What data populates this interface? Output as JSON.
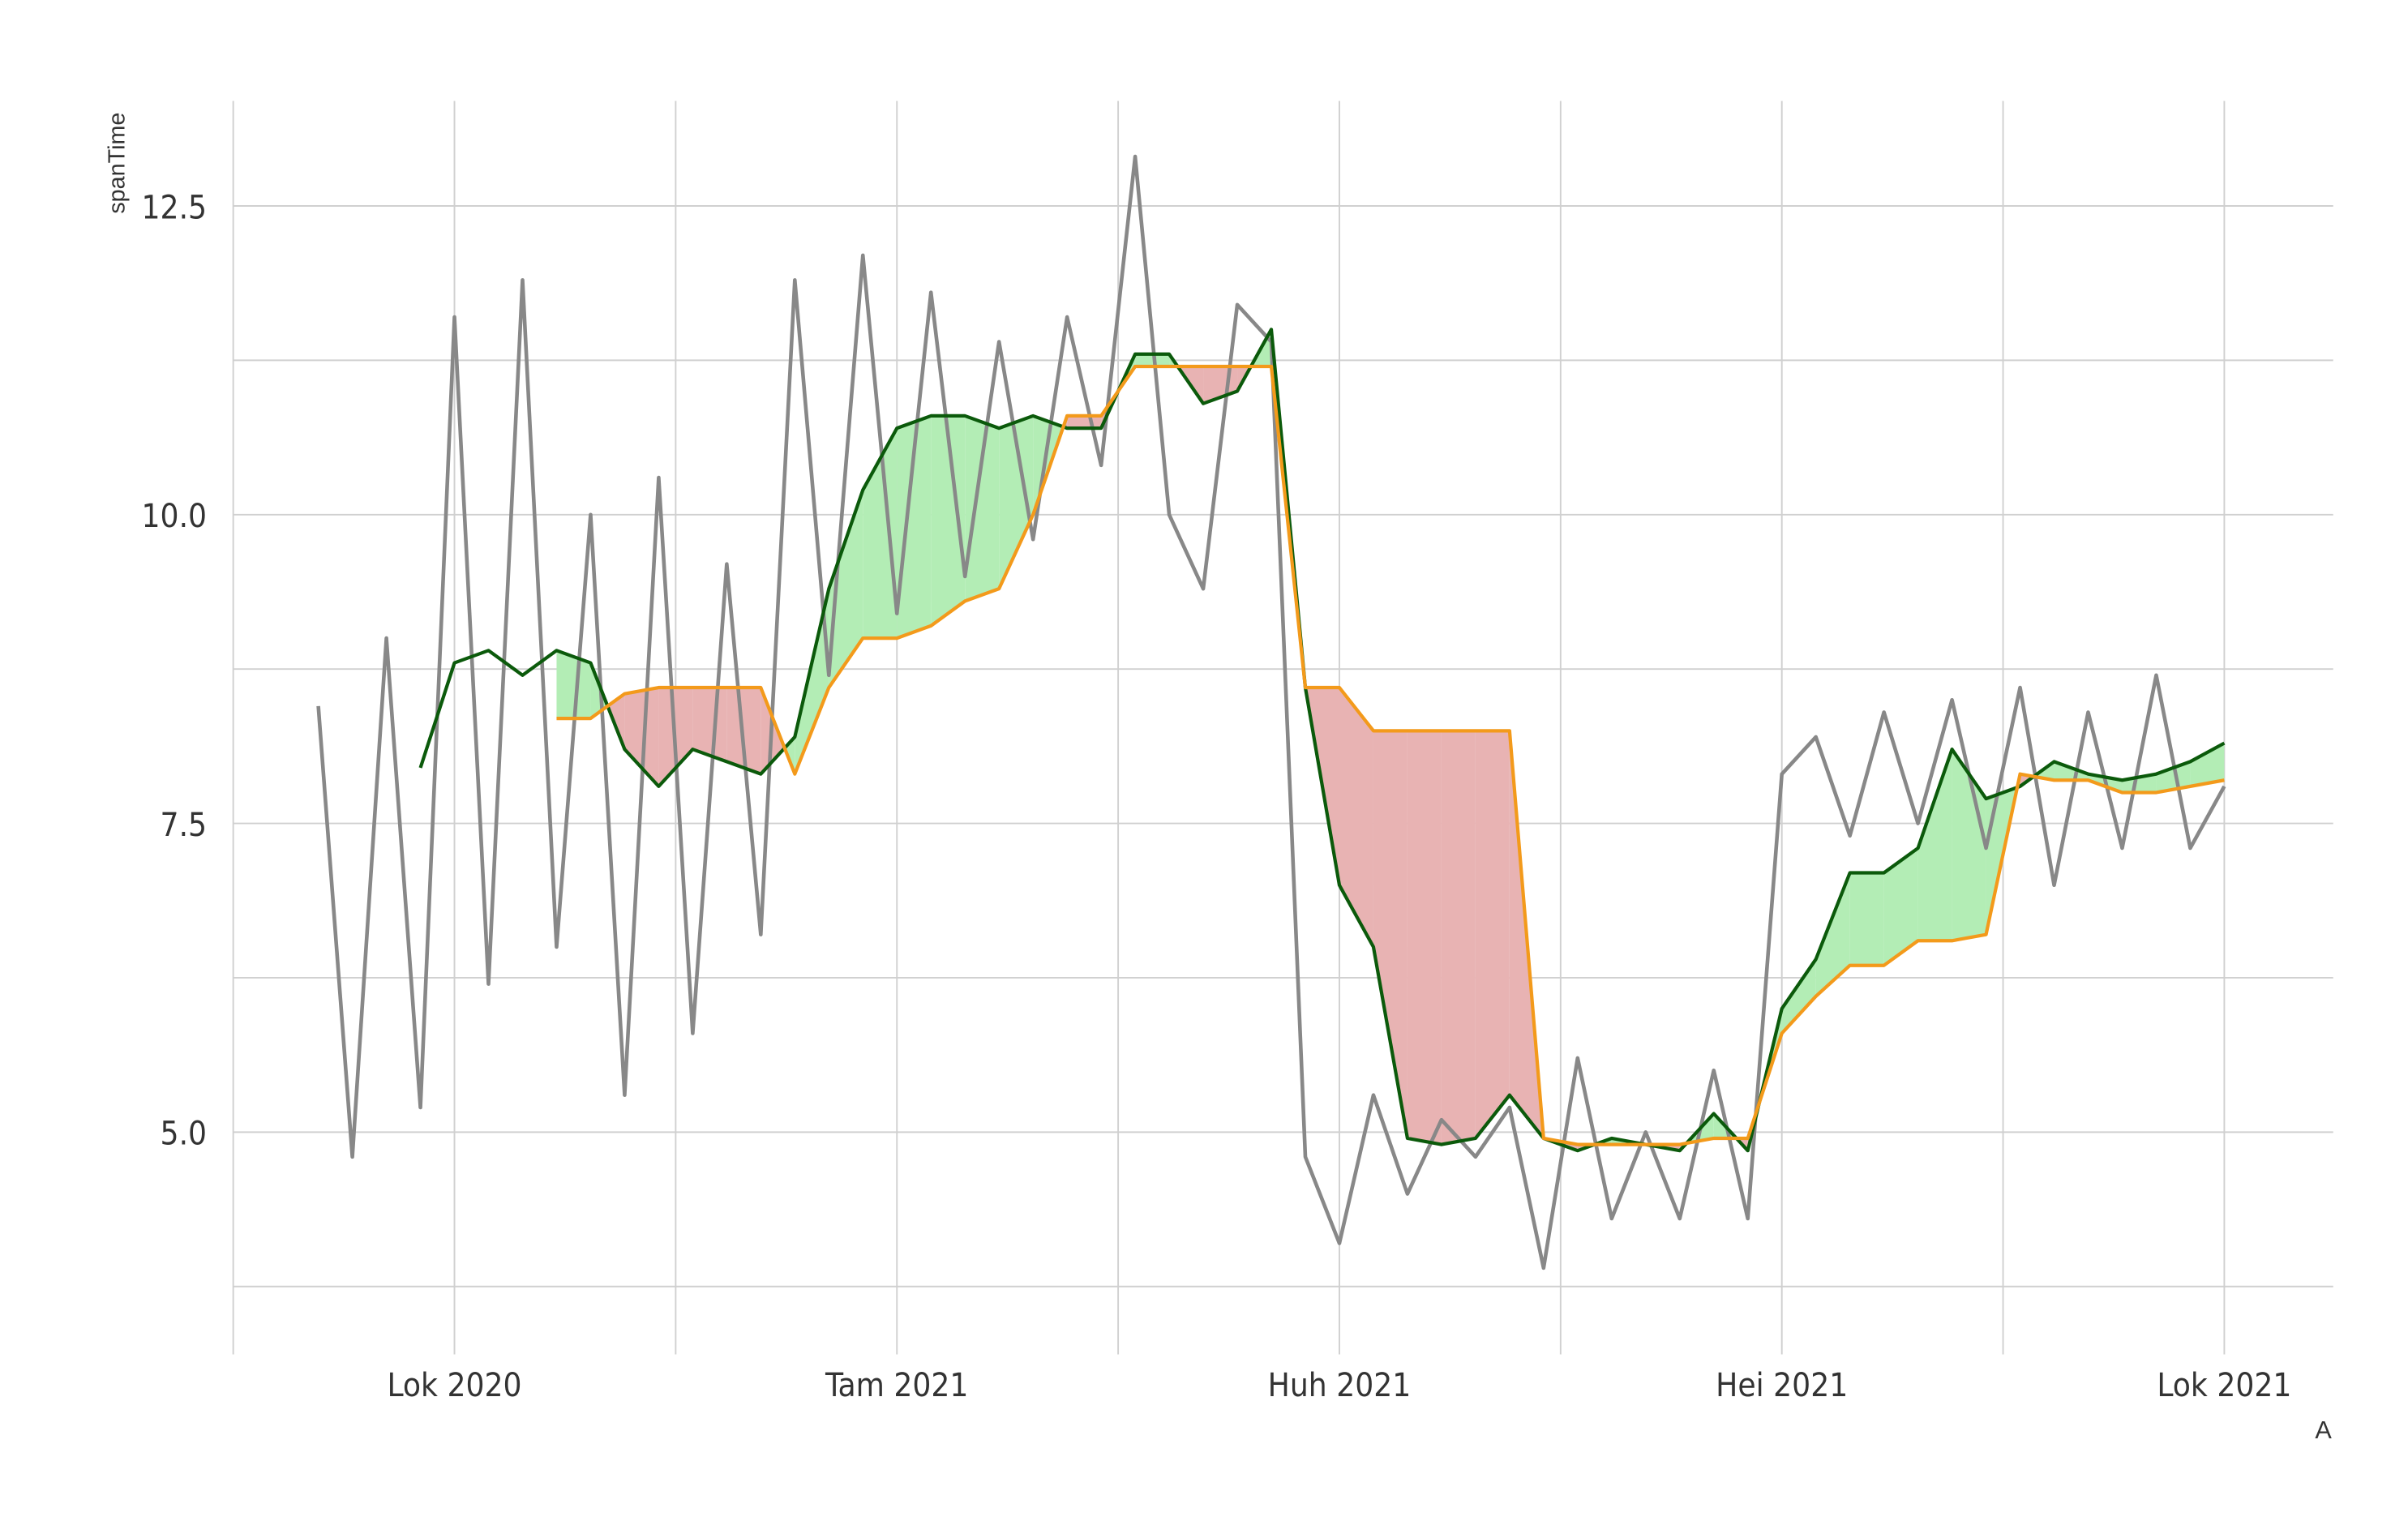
{
  "chart_data": {
    "type": "line",
    "y_label": "spanTime",
    "x_label": "A",
    "categories": [
      null,
      null,
      null,
      null,
      "Lok 2020",
      null,
      null,
      null,
      null,
      null,
      null,
      null,
      null,
      null,
      null,
      null,
      null,
      "Tam 2021",
      null,
      null,
      null,
      null,
      null,
      null,
      null,
      null,
      null,
      null,
      null,
      null,
      "Huh 2021",
      null,
      null,
      null,
      null,
      null,
      null,
      null,
      null,
      null,
      null,
      null,
      null,
      "Hei 2021",
      null,
      null,
      null,
      null,
      null,
      null,
      null,
      null,
      null,
      null,
      null,
      null,
      "Lok 2021"
    ],
    "series": [
      {
        "color": "#888888",
        "values": [
          8.45,
          4.8,
          9.0,
          5.2,
          11.6,
          6.2,
          11.9,
          6.5,
          10.0,
          5.3,
          10.3,
          5.8,
          9.6,
          6.6,
          11.9,
          8.7,
          12.1,
          9.2,
          11.8,
          9.5,
          11.4,
          9.8,
          11.6,
          10.4,
          12.9,
          10.0,
          9.4,
          11.7,
          11.4,
          4.8,
          4.1,
          5.3,
          4.5,
          5.1,
          4.8,
          5.2,
          3.9,
          5.6,
          4.3,
          5.0,
          4.3,
          5.5,
          4.3,
          7.9,
          8.2,
          7.4,
          8.4,
          7.5,
          8.5,
          7.3,
          8.6,
          7.0,
          8.4,
          7.3,
          8.7,
          7.3,
          7.8
        ]
      },
      {
        "color": "#0b5a0b",
        "values": [
          null,
          null,
          null,
          7.95,
          8.8,
          8.9,
          8.7,
          8.9,
          8.8,
          8.1,
          7.8,
          8.1,
          8.0,
          7.9,
          8.2,
          9.4,
          10.2,
          10.7,
          10.8,
          10.8,
          10.7,
          10.8,
          10.7,
          10.7,
          11.3,
          11.3,
          10.9,
          11.0,
          11.5,
          8.6,
          7.0,
          6.5,
          4.95,
          4.9,
          4.95,
          5.3,
          4.95,
          4.85,
          4.95,
          4.9,
          4.85,
          5.15,
          4.85,
          6.0,
          6.4,
          7.1,
          7.1,
          7.3,
          8.1,
          7.7,
          7.8,
          8.0,
          7.9,
          7.85,
          7.9,
          8.0,
          8.15
        ]
      },
      {
        "color": "#f39a1b",
        "values": [
          null,
          null,
          null,
          null,
          null,
          null,
          null,
          8.35,
          8.35,
          8.55,
          8.6,
          8.6,
          8.6,
          8.6,
          7.9,
          8.6,
          9.0,
          9.0,
          9.1,
          9.3,
          9.4,
          10.0,
          10.8,
          10.8,
          11.2,
          11.2,
          11.2,
          11.2,
          11.2,
          8.6,
          8.6,
          8.25,
          8.25,
          8.25,
          8.25,
          8.25,
          4.95,
          4.9,
          4.9,
          4.9,
          4.9,
          4.95,
          4.95,
          5.8,
          6.1,
          6.35,
          6.35,
          6.55,
          6.55,
          6.6,
          7.9,
          7.85,
          7.85,
          7.75,
          7.75,
          7.8,
          7.85
        ]
      }
    ],
    "fill_above": "#b3edb5",
    "fill_below": "#e8b3b3",
    "ylim": [
      3.2,
      13.35
    ],
    "yticks": [
      {
        "value": 5,
        "label": "5.0"
      },
      {
        "value": 7.5,
        "label": "7.5"
      },
      {
        "value": 10,
        "label": "10.0"
      },
      {
        "value": 12.5,
        "label": "12.5"
      }
    ],
    "yminor": [
      3.75,
      6.25,
      8.75,
      11.25
    ],
    "grid": true
  }
}
